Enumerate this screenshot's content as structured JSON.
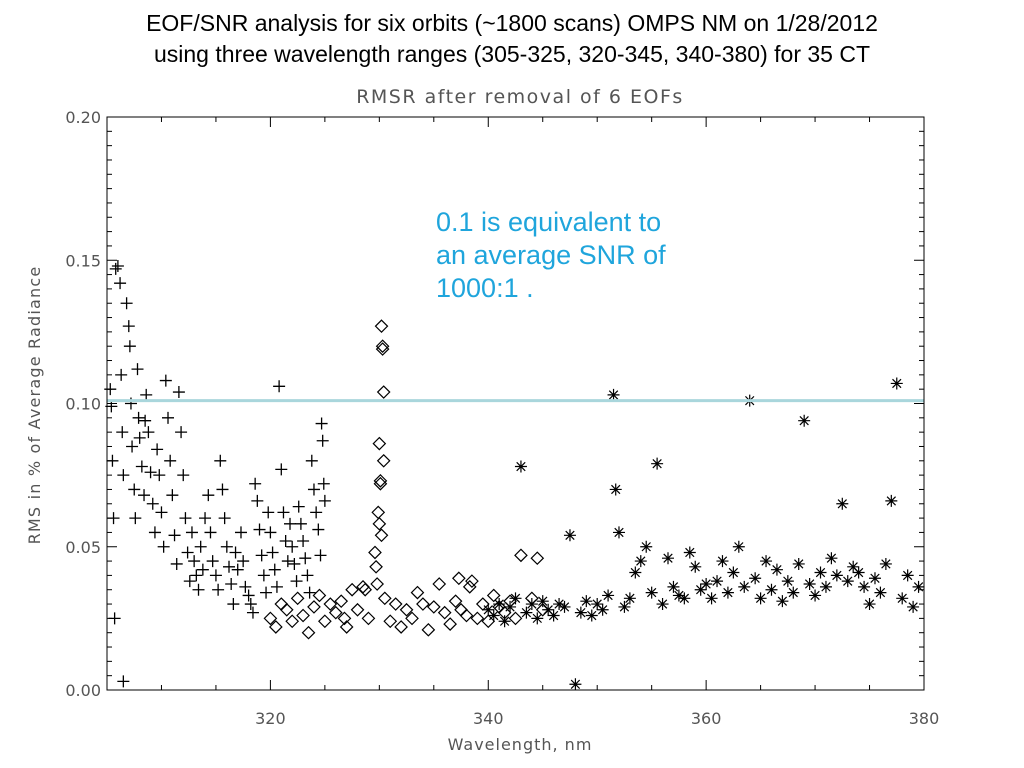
{
  "slide": {
    "title_line1": "EOF/SNR analysis for six orbits (~1800 scans) OMPS NM on 1/28/2012",
    "title_line2": "using three wavelength ranges (305-325, 320-345, 340-380) for 35 CT"
  },
  "annotation": {
    "line1": "0.1 is equivalent to",
    "line2": "an average SNR of",
    "line3": "1000:1 .",
    "color": "#1fa5dc"
  },
  "chart_data": {
    "type": "scatter",
    "title": "RMSR after removal of 6 EOFs",
    "xlabel": "Wavelength, nm",
    "ylabel": "RMS in % of Average Radiance",
    "xlim": [
      305,
      380
    ],
    "ylim": [
      0.0,
      0.2
    ],
    "x_ticks": [
      320,
      340,
      360,
      380
    ],
    "x_tick_labels": [
      "320",
      "340",
      "360",
      "380"
    ],
    "y_ticks": [
      0.0,
      0.05,
      0.1,
      0.15,
      0.2
    ],
    "y_tick_labels": [
      "0.00",
      "0.05",
      "0.10",
      "0.15",
      "0.20"
    ],
    "reference_line": {
      "y": 0.101,
      "color": "#a9d6dc"
    },
    "grid": false,
    "legend": "none",
    "series": [
      {
        "marker": "plus",
        "range_nm": [
          305,
          325
        ],
        "points": [
          [
            305.3,
            0.105
          ],
          [
            305.4,
            0.099
          ],
          [
            305.5,
            0.08
          ],
          [
            305.6,
            0.06
          ],
          [
            305.7,
            0.025
          ],
          [
            305.8,
            0.147
          ],
          [
            306.0,
            0.148
          ],
          [
            306.2,
            0.142
          ],
          [
            306.3,
            0.11
          ],
          [
            306.4,
            0.09
          ],
          [
            306.5,
            0.075
          ],
          [
            306.5,
            0.003
          ],
          [
            306.8,
            0.135
          ],
          [
            307.0,
            0.127
          ],
          [
            307.1,
            0.12
          ],
          [
            307.2,
            0.1
          ],
          [
            307.3,
            0.085
          ],
          [
            307.5,
            0.07
          ],
          [
            307.6,
            0.06
          ],
          [
            307.8,
            0.112
          ],
          [
            307.9,
            0.095
          ],
          [
            308.0,
            0.088
          ],
          [
            308.2,
            0.078
          ],
          [
            308.4,
            0.068
          ],
          [
            308.5,
            0.094
          ],
          [
            308.6,
            0.103
          ],
          [
            308.8,
            0.09
          ],
          [
            309.0,
            0.076
          ],
          [
            309.2,
            0.065
          ],
          [
            309.4,
            0.055
          ],
          [
            309.6,
            0.084
          ],
          [
            309.8,
            0.075
          ],
          [
            310.0,
            0.062
          ],
          [
            310.2,
            0.05
          ],
          [
            310.4,
            0.108
          ],
          [
            310.6,
            0.095
          ],
          [
            310.8,
            0.08
          ],
          [
            311.0,
            0.068
          ],
          [
            311.2,
            0.054
          ],
          [
            311.4,
            0.044
          ],
          [
            311.6,
            0.104
          ],
          [
            311.8,
            0.09
          ],
          [
            312.0,
            0.075
          ],
          [
            312.2,
            0.06
          ],
          [
            312.4,
            0.048
          ],
          [
            312.6,
            0.038
          ],
          [
            312.8,
            0.055
          ],
          [
            313.0,
            0.045
          ],
          [
            313.2,
            0.04
          ],
          [
            313.4,
            0.035
          ],
          [
            313.6,
            0.05
          ],
          [
            313.8,
            0.042
          ],
          [
            314.0,
            0.06
          ],
          [
            314.3,
            0.068
          ],
          [
            314.5,
            0.055
          ],
          [
            314.7,
            0.045
          ],
          [
            315.0,
            0.04
          ],
          [
            315.2,
            0.035
          ],
          [
            315.4,
            0.08
          ],
          [
            315.6,
            0.07
          ],
          [
            315.8,
            0.06
          ],
          [
            316.0,
            0.05
          ],
          [
            316.2,
            0.043
          ],
          [
            316.4,
            0.037
          ],
          [
            316.6,
            0.03
          ],
          [
            316.8,
            0.048
          ],
          [
            317.0,
            0.042
          ],
          [
            317.3,
            0.055
          ],
          [
            317.5,
            0.045
          ],
          [
            317.7,
            0.036
          ],
          [
            318.0,
            0.033
          ],
          [
            318.2,
            0.03
          ],
          [
            318.4,
            0.027
          ],
          [
            318.6,
            0.072
          ],
          [
            318.8,
            0.066
          ],
          [
            319.0,
            0.056
          ],
          [
            319.2,
            0.047
          ],
          [
            319.4,
            0.04
          ],
          [
            319.6,
            0.034
          ],
          [
            319.8,
            0.062
          ],
          [
            320.0,
            0.055
          ],
          [
            320.2,
            0.048
          ],
          [
            320.4,
            0.042
          ],
          [
            320.6,
            0.036
          ],
          [
            320.8,
            0.106
          ],
          [
            321.0,
            0.077
          ],
          [
            321.2,
            0.062
          ],
          [
            321.4,
            0.052
          ],
          [
            321.6,
            0.045
          ],
          [
            321.8,
            0.058
          ],
          [
            322.0,
            0.05
          ],
          [
            322.2,
            0.044
          ],
          [
            322.4,
            0.038
          ],
          [
            322.6,
            0.064
          ],
          [
            322.8,
            0.058
          ],
          [
            323.0,
            0.052
          ],
          [
            323.2,
            0.046
          ],
          [
            323.4,
            0.04
          ],
          [
            323.6,
            0.034
          ],
          [
            323.8,
            0.08
          ],
          [
            324.0,
            0.07
          ],
          [
            324.2,
            0.062
          ],
          [
            324.4,
            0.056
          ],
          [
            324.6,
            0.047
          ],
          [
            324.7,
            0.093
          ],
          [
            324.8,
            0.087
          ],
          [
            324.9,
            0.072
          ],
          [
            325.0,
            0.066
          ]
        ]
      },
      {
        "marker": "diamond",
        "range_nm": [
          320,
          345
        ],
        "points": [
          [
            320.0,
            0.025
          ],
          [
            320.5,
            0.022
          ],
          [
            321.0,
            0.03
          ],
          [
            321.5,
            0.028
          ],
          [
            322.0,
            0.024
          ],
          [
            322.5,
            0.032
          ],
          [
            323.0,
            0.026
          ],
          [
            323.5,
            0.02
          ],
          [
            324.0,
            0.029
          ],
          [
            324.5,
            0.033
          ],
          [
            325.0,
            0.024
          ],
          [
            325.5,
            0.03
          ],
          [
            326.0,
            0.027
          ],
          [
            326.5,
            0.031
          ],
          [
            327.0,
            0.022
          ],
          [
            327.5,
            0.035
          ],
          [
            328.0,
            0.028
          ],
          [
            328.5,
            0.036
          ],
          [
            329.0,
            0.025
          ],
          [
            329.6,
            0.048
          ],
          [
            329.7,
            0.043
          ],
          [
            329.8,
            0.037
          ],
          [
            329.9,
            0.062
          ],
          [
            330.0,
            0.058
          ],
          [
            330.0,
            0.086
          ],
          [
            330.1,
            0.073
          ],
          [
            330.1,
            0.072
          ],
          [
            330.2,
            0.127
          ],
          [
            330.3,
            0.12
          ],
          [
            330.3,
            0.119
          ],
          [
            330.4,
            0.104
          ],
          [
            330.4,
            0.08
          ],
          [
            330.2,
            0.054
          ],
          [
            330.5,
            0.032
          ],
          [
            331.0,
            0.024
          ],
          [
            331.5,
            0.03
          ],
          [
            332.0,
            0.022
          ],
          [
            332.5,
            0.028
          ],
          [
            333.0,
            0.025
          ],
          [
            333.5,
            0.034
          ],
          [
            334.0,
            0.03
          ],
          [
            334.5,
            0.021
          ],
          [
            335.0,
            0.029
          ],
          [
            335.5,
            0.037
          ],
          [
            336.0,
            0.027
          ],
          [
            336.5,
            0.023
          ],
          [
            337.0,
            0.031
          ],
          [
            337.5,
            0.028
          ],
          [
            338.0,
            0.026
          ],
          [
            338.5,
            0.038
          ],
          [
            339.0,
            0.025
          ],
          [
            339.5,
            0.03
          ],
          [
            340.0,
            0.024
          ],
          [
            340.5,
            0.033
          ],
          [
            341.0,
            0.029
          ],
          [
            341.5,
            0.027
          ],
          [
            342.0,
            0.031
          ],
          [
            342.5,
            0.025
          ],
          [
            343.0,
            0.047
          ],
          [
            344.0,
            0.032
          ],
          [
            344.5,
            0.046
          ],
          [
            345.0,
            0.028
          ],
          [
            337.3,
            0.039
          ],
          [
            338.3,
            0.036
          ],
          [
            326.8,
            0.025
          ],
          [
            328.7,
            0.035
          ]
        ]
      },
      {
        "marker": "asterisk",
        "range_nm": [
          340,
          380
        ],
        "points": [
          [
            340.0,
            0.028
          ],
          [
            340.5,
            0.026
          ],
          [
            341.0,
            0.03
          ],
          [
            341.5,
            0.024
          ],
          [
            342.0,
            0.029
          ],
          [
            342.5,
            0.032
          ],
          [
            343.0,
            0.078
          ],
          [
            343.5,
            0.027
          ],
          [
            344.0,
            0.03
          ],
          [
            344.5,
            0.025
          ],
          [
            345.0,
            0.031
          ],
          [
            345.5,
            0.028
          ],
          [
            346.0,
            0.026
          ],
          [
            346.5,
            0.03
          ],
          [
            347.0,
            0.029
          ],
          [
            347.5,
            0.054
          ],
          [
            348.0,
            0.002
          ],
          [
            348.5,
            0.027
          ],
          [
            349.0,
            0.031
          ],
          [
            349.5,
            0.026
          ],
          [
            350.0,
            0.03
          ],
          [
            350.5,
            0.028
          ],
          [
            351.0,
            0.033
          ],
          [
            351.5,
            0.103
          ],
          [
            351.7,
            0.07
          ],
          [
            352.0,
            0.055
          ],
          [
            352.5,
            0.029
          ],
          [
            353.0,
            0.032
          ],
          [
            353.5,
            0.041
          ],
          [
            354.0,
            0.045
          ],
          [
            354.5,
            0.05
          ],
          [
            355.0,
            0.034
          ],
          [
            355.5,
            0.079
          ],
          [
            356.0,
            0.03
          ],
          [
            356.5,
            0.046
          ],
          [
            357.0,
            0.036
          ],
          [
            357.5,
            0.033
          ],
          [
            358.0,
            0.032
          ],
          [
            358.5,
            0.048
          ],
          [
            359.0,
            0.043
          ],
          [
            359.5,
            0.035
          ],
          [
            360.0,
            0.037
          ],
          [
            360.5,
            0.032
          ],
          [
            361.0,
            0.038
          ],
          [
            361.5,
            0.045
          ],
          [
            362.0,
            0.034
          ],
          [
            362.5,
            0.041
          ],
          [
            363.0,
            0.05
          ],
          [
            363.5,
            0.036
          ],
          [
            364.0,
            0.101
          ],
          [
            364.5,
            0.039
          ],
          [
            365.0,
            0.032
          ],
          [
            365.5,
            0.045
          ],
          [
            366.0,
            0.035
          ],
          [
            366.5,
            0.042
          ],
          [
            367.0,
            0.031
          ],
          [
            367.5,
            0.038
          ],
          [
            368.0,
            0.034
          ],
          [
            368.5,
            0.044
          ],
          [
            369.0,
            0.094
          ],
          [
            369.5,
            0.037
          ],
          [
            370.0,
            0.033
          ],
          [
            370.5,
            0.041
          ],
          [
            371.0,
            0.036
          ],
          [
            371.5,
            0.046
          ],
          [
            372.0,
            0.04
          ],
          [
            372.5,
            0.065
          ],
          [
            373.0,
            0.038
          ],
          [
            373.5,
            0.043
          ],
          [
            374.0,
            0.041
          ],
          [
            374.5,
            0.036
          ],
          [
            375.0,
            0.03
          ],
          [
            375.5,
            0.039
          ],
          [
            376.0,
            0.034
          ],
          [
            376.5,
            0.044
          ],
          [
            377.0,
            0.066
          ],
          [
            377.5,
            0.107
          ],
          [
            378.0,
            0.032
          ],
          [
            378.5,
            0.04
          ],
          [
            379.0,
            0.029
          ],
          [
            379.5,
            0.036
          ]
        ]
      }
    ]
  }
}
